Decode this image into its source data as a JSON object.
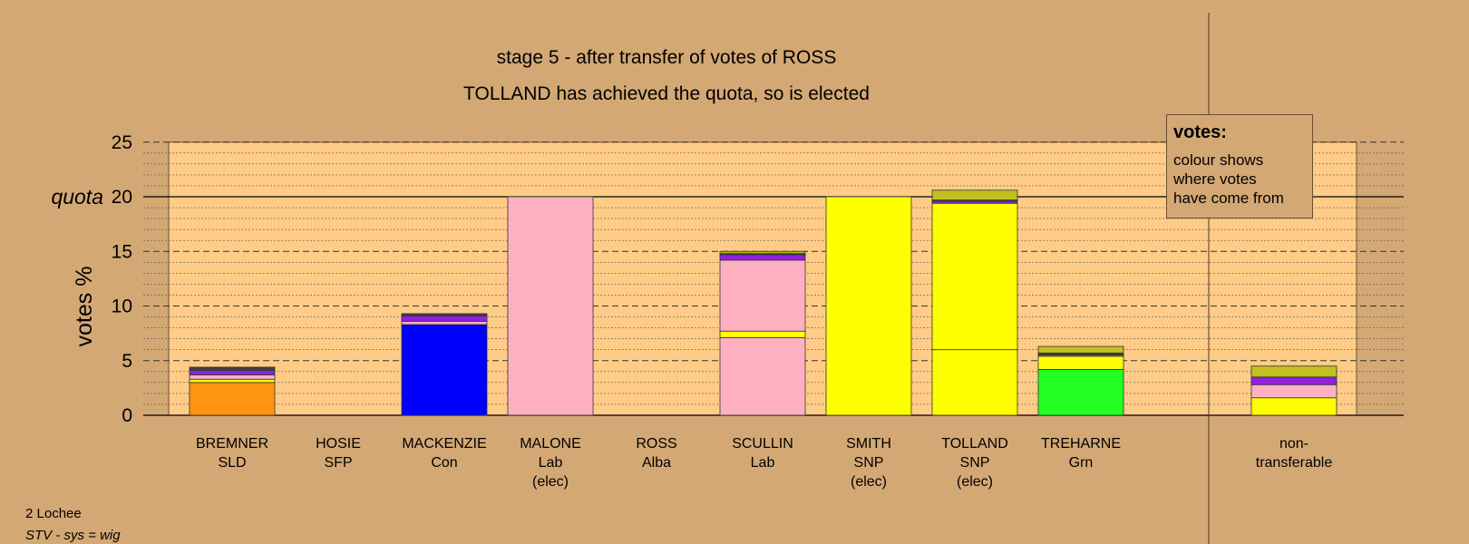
{
  "title": "stage 5 - after transfer of votes of ROSS",
  "subtitle": "TOLLAND has achieved the quota, so is elected",
  "footer": {
    "ward": "2 Lochee",
    "system": "STV - sys = wig"
  },
  "legend": {
    "title": "votes:",
    "lines": [
      "colour shows",
      "where votes",
      "have come from"
    ]
  },
  "colors": {
    "orange": "#ff9410",
    "blue": "#0000ff",
    "pink": "#ffb0c0",
    "yellow": "#ffff00",
    "green": "#22ff22",
    "purple": "#9020e0",
    "olive": "#c0c020",
    "dark": "#404040",
    "background": "#d4a874",
    "plot_bg": "#ffcc88"
  },
  "chart_data": {
    "type": "bar",
    "stacked": true,
    "ylabel": "votes %",
    "ylim": [
      0,
      25
    ],
    "yticks": [
      0,
      5,
      10,
      15,
      20,
      25
    ],
    "quota": {
      "label": "quota",
      "value": 20
    },
    "grid": true,
    "categories": [
      {
        "name": "BREMNER",
        "party": "SLD",
        "note": "",
        "segments": [
          {
            "color": "orange",
            "value": 3.0
          },
          {
            "color": "yellow",
            "value": 0.3
          },
          {
            "color": "pink",
            "value": 0.4
          },
          {
            "color": "purple",
            "value": 0.4
          },
          {
            "color": "dark",
            "value": 0.3
          }
        ]
      },
      {
        "name": "HOSIE",
        "party": "SFP",
        "note": "",
        "segments": []
      },
      {
        "name": "MACKENZIE",
        "party": "Con",
        "note": "",
        "segments": [
          {
            "color": "blue",
            "value": 8.3
          },
          {
            "color": "pink",
            "value": 0.3
          },
          {
            "color": "purple",
            "value": 0.5
          },
          {
            "color": "dark",
            "value": 0.2
          }
        ]
      },
      {
        "name": "MALONE",
        "party": "Lab",
        "note": "(elec)",
        "segments": [
          {
            "color": "pink",
            "value": 20.0
          }
        ]
      },
      {
        "name": "ROSS",
        "party": "Alba",
        "note": "",
        "segments": []
      },
      {
        "name": "SCULLIN",
        "party": "Lab",
        "note": "",
        "segments": [
          {
            "color": "pink",
            "value": 7.1
          },
          {
            "color": "yellow",
            "value": 0.6
          },
          {
            "color": "pink",
            "value": 6.5
          },
          {
            "color": "purple",
            "value": 0.5
          },
          {
            "color": "dark",
            "value": 0.1
          },
          {
            "color": "olive",
            "value": 0.2
          }
        ]
      },
      {
        "name": "SMITH",
        "party": "SNP",
        "note": "(elec)",
        "segments": [
          {
            "color": "yellow",
            "value": 20.0
          }
        ]
      },
      {
        "name": "TOLLAND",
        "party": "SNP",
        "note": "(elec)",
        "segments": [
          {
            "color": "yellow",
            "value": 6.0
          },
          {
            "color": "yellow",
            "value": 13.4
          },
          {
            "color": "purple",
            "value": 0.2
          },
          {
            "color": "dark",
            "value": 0.1
          },
          {
            "color": "olive",
            "value": 0.9
          }
        ]
      },
      {
        "name": "TREHARNE",
        "party": "Grn",
        "note": "",
        "segments": [
          {
            "color": "green",
            "value": 4.2
          },
          {
            "color": "yellow",
            "value": 1.2
          },
          {
            "color": "pink",
            "value": 0.1
          },
          {
            "color": "dark",
            "value": 0.2
          },
          {
            "color": "olive",
            "value": 0.6
          }
        ]
      }
    ],
    "nontransferable": {
      "label": [
        "non-",
        "transferable"
      ],
      "segments": [
        {
          "color": "yellow",
          "value": 1.6
        },
        {
          "color": "pink",
          "value": 1.2
        },
        {
          "color": "purple",
          "value": 0.7
        },
        {
          "color": "olive",
          "value": 1.0
        }
      ]
    }
  }
}
